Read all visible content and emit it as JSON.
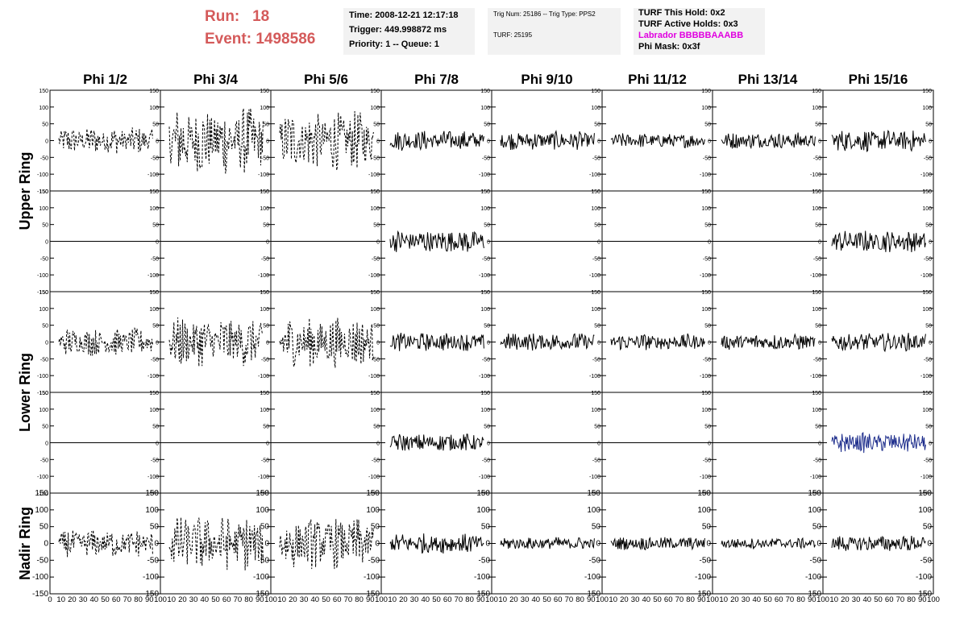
{
  "header": {
    "run_label": "Run:",
    "run_value": "18",
    "event_label": "Event:",
    "event_value": "1498586",
    "time": "Time: 2008-12-21 12:17:18",
    "trigger": "Trigger: 449.998872 ms",
    "priority": "Priority: 1 -- Queue: 1",
    "trig_num": "Trig Num: 25186 -- Trig Type: PPS2",
    "turf": "TURF: 25195",
    "turf_hold": "TURF This Hold: 0x2",
    "turf_active": "TURF Active Holds: 0x3",
    "labrador": "Labrador BBBBBAAABB",
    "phi_mask": "Phi Mask: 0x3f"
  },
  "colors": {
    "run_event": "#d45a5a",
    "labrador": "#e000e0",
    "info_box": "#f2f2f2",
    "trace": "#000000",
    "highlight_trace": "#1a2a8a"
  },
  "chart_data": {
    "type": "line",
    "columns": [
      "Phi 1/2",
      "Phi 3/4",
      "Phi 5/6",
      "Phi 7/8",
      "Phi 9/10",
      "Phi 11/12",
      "Phi 13/14",
      "Phi 15/16"
    ],
    "rings": [
      "Upper Ring",
      "Lower Ring",
      "Nadir Ring"
    ],
    "ylim": [
      -150,
      150
    ],
    "xlim": [
      0,
      100
    ],
    "y_ticks": [
      -150,
      -100,
      -50,
      0,
      50,
      100,
      150
    ],
    "x_ticks": [
      0,
      10,
      20,
      30,
      40,
      50,
      60,
      70,
      80,
      90,
      100
    ],
    "rows": [
      {
        "ring": "Upper Ring",
        "amplitudes": [
          30,
          75,
          65,
          22,
          20,
          16,
          18,
          24
        ],
        "styles": [
          "dash",
          "dash",
          "dash",
          "solid",
          "solid",
          "solid",
          "solid",
          "solid"
        ]
      },
      {
        "ring": "Upper Ring",
        "amplitudes": [
          0,
          0,
          0,
          26,
          0,
          0,
          0,
          24
        ],
        "styles": [
          "solid",
          "solid",
          "solid",
          "solid",
          "solid",
          "solid",
          "solid",
          "solid"
        ]
      },
      {
        "ring": "Lower Ring",
        "amplitudes": [
          30,
          55,
          55,
          20,
          20,
          18,
          18,
          20
        ],
        "styles": [
          "dash",
          "dash",
          "dash",
          "solid",
          "solid",
          "solid",
          "solid",
          "solid"
        ]
      },
      {
        "ring": "Lower Ring",
        "amplitudes": [
          0,
          0,
          0,
          20,
          0,
          0,
          0,
          22
        ],
        "styles": [
          "solid",
          "solid",
          "solid",
          "solid",
          "solid",
          "solid",
          "solid",
          "blue"
        ]
      },
      {
        "ring": "Nadir Ring",
        "amplitudes": [
          30,
          60,
          55,
          22,
          14,
          14,
          12,
          18
        ],
        "styles": [
          "dash",
          "dash",
          "dash",
          "solid",
          "solid",
          "solid",
          "solid",
          "solid"
        ]
      }
    ]
  }
}
